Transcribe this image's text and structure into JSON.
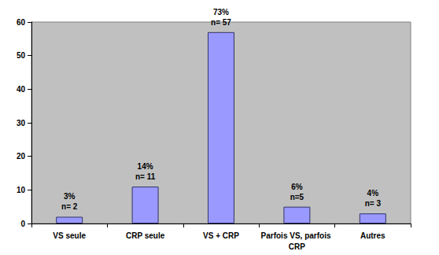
{
  "chart_data": {
    "type": "bar",
    "categories": [
      "VS seule",
      "CRP seule",
      "VS + CRP",
      "Parfois VS, parfois CRP",
      "Autres"
    ],
    "values": [
      2,
      11,
      57,
      5,
      3
    ],
    "value_labels": [
      "n= 2",
      "n= 11",
      "n= 57",
      "n=5",
      "n= 3"
    ],
    "percent_labels": [
      "3%",
      "14%",
      "73%",
      "6%",
      "4%"
    ],
    "color": "#9999ff",
    "ylim": [
      0,
      60
    ],
    "yticks": [
      0,
      10,
      20,
      30,
      40,
      50,
      60
    ],
    "grid": false,
    "data_labels": true
  }
}
